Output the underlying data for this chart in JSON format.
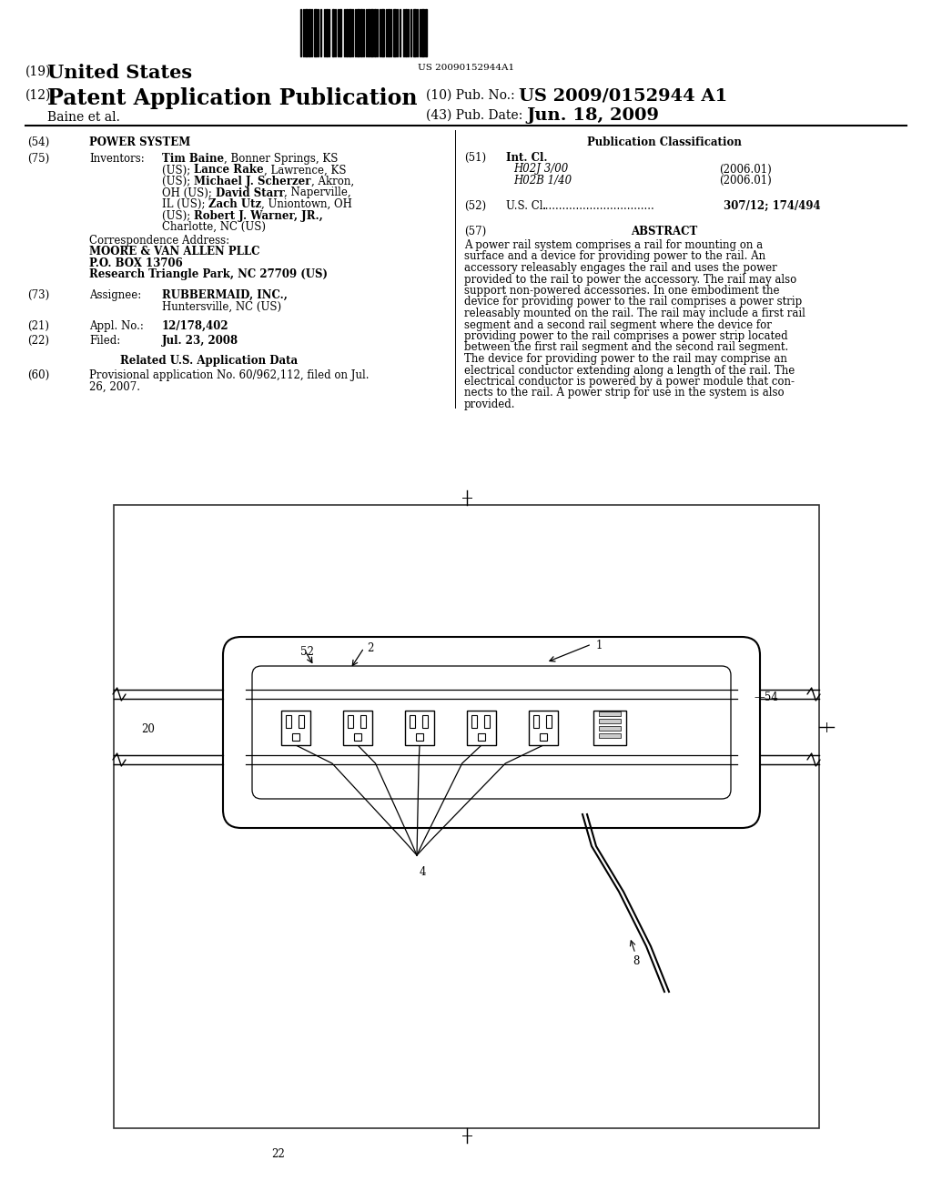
{
  "bg_color": "#ffffff",
  "barcode_text": "US 20090152944A1",
  "title_19": "(19)",
  "title_19b": "United States",
  "title_12": "(12)",
  "title_12b": "Patent Application Publication",
  "pub_no_label": "(10) Pub. No.:",
  "pub_no": "US 2009/0152944 A1",
  "pub_date_label": "(43) Pub. Date:",
  "pub_date": "Jun. 18, 2009",
  "author": "Baine et al.",
  "section54_label": "(54)",
  "section54": "POWER SYSTEM",
  "section75_label": "(75)",
  "section75_key": "Inventors:",
  "corr_label": "Correspondence Address:",
  "corr_line1": "MOORE & VAN ALLEN PLLC",
  "corr_line2": "P.O. BOX 13706",
  "corr_line3": "Research Triangle Park, NC 27709 (US)",
  "section73_label": "(73)",
  "section73_key": "Assignee:",
  "section73_val1": "RUBBERMAID, INC.,",
  "section73_val2": "Huntersville, NC (US)",
  "section21_label": "(21)",
  "section21_key": "Appl. No.:",
  "section21_val": "12/178,402",
  "section22_label": "(22)",
  "section22_key": "Filed:",
  "section22_val": "Jul. 23, 2008",
  "related_title": "Related U.S. Application Data",
  "section60_label": "(60)",
  "section60_val1": "Provisional application No. 60/962,112, filed on Jul.",
  "section60_val2": "26, 2007.",
  "pub_class_title": "Publication Classification",
  "section51_label": "(51)",
  "section51_key": "Int. Cl.",
  "section51_class1": "H02J 3/00",
  "section51_year1": "(2006.01)",
  "section51_class2": "H02B 1/40",
  "section51_year2": "(2006.01)",
  "section52_label": "(52)",
  "section52_key": "U.S. Cl.",
  "section52_dots": ".................................",
  "section52_val": "307/12; 174/494",
  "section57_label": "(57)",
  "section57_key": "ABSTRACT",
  "abstract_lines": [
    "A power rail system comprises a rail for mounting on a",
    "surface and a device for providing power to the rail. An",
    "accessory releasably engages the rail and uses the power",
    "provided to the rail to power the accessory. The rail may also",
    "support non-powered accessories. In one embodiment the",
    "device for providing power to the rail comprises a power strip",
    "releasably mounted on the rail. The rail may include a first rail",
    "segment and a second rail segment where the device for",
    "providing power to the rail comprises a power strip located",
    "between the first rail segment and the second rail segment.",
    "The device for providing power to the rail may comprise an",
    "electrical conductor extending along a length of the rail. The",
    "electrical conductor is powered by a power module that con-",
    "nects to the rail. A power strip for use in the system is also",
    "provided."
  ]
}
